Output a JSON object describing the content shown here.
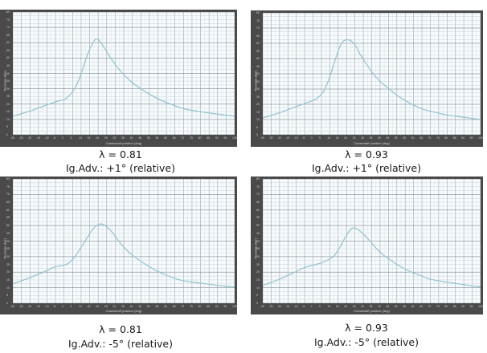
{
  "chart_data": [
    {
      "type": "line",
      "title": "",
      "caption_line1": "λ = 0.81",
      "caption_line2": "Ig.Adv.: +1° (relative)",
      "xlabel": "Crankshaft position (deg)",
      "ylabel": "Pressure (bar)",
      "xlim": [
        -30,
        100
      ],
      "ylim": [
        0,
        80
      ],
      "grid": true,
      "line_color": "#8fc3d0",
      "x": [
        -30,
        -20,
        -10,
        -5,
        0,
        2,
        5,
        8,
        11,
        14,
        17,
        19,
        21,
        24,
        28,
        32,
        36,
        40,
        45,
        50,
        55,
        60,
        65,
        70,
        80,
        90,
        100
      ],
      "values": [
        12,
        15.5,
        19.5,
        21.5,
        23,
        24.5,
        28,
        34,
        43,
        53,
        60,
        62.5,
        61,
        56,
        49,
        43,
        38,
        34,
        30,
        26.5,
        23.5,
        21,
        19,
        17,
        15,
        13.5,
        12
      ]
    },
    {
      "type": "line",
      "title": "",
      "caption_line1": "λ = 0.93",
      "caption_line2": "Ig.Adv.: +1° (relative)",
      "xlabel": "Crankshaft position (deg)",
      "ylabel": "Pressure (bar)",
      "xlim": [
        -30,
        100
      ],
      "ylim": [
        0,
        80
      ],
      "grid": true,
      "line_color": "#8fc3d0",
      "x": [
        -30,
        -20,
        -10,
        -5,
        0,
        3,
        6,
        9,
        12,
        15,
        17,
        19,
        22,
        25,
        28,
        32,
        36,
        40,
        45,
        50,
        55,
        60,
        65,
        70,
        80,
        90,
        100
      ],
      "values": [
        11,
        14.5,
        18.5,
        20.5,
        22.5,
        24.5,
        28,
        35,
        45,
        55,
        60,
        62,
        62,
        59,
        53,
        46,
        40,
        35,
        30.5,
        26,
        22.5,
        19.5,
        17,
        15.5,
        13,
        11.5,
        10
      ]
    },
    {
      "type": "line",
      "title": "",
      "caption_line1": "λ = 0.81",
      "caption_line2": "Ig.Adv.: -5° (relative)",
      "xlabel": "Crankshaft position (deg)",
      "ylabel": "Pressure (bar)",
      "xlim": [
        -30,
        100
      ],
      "ylim": [
        0,
        80
      ],
      "grid": true,
      "line_color": "#8fc3d0",
      "x": [
        -30,
        -20,
        -10,
        -5,
        0,
        3,
        6,
        10,
        14,
        17,
        20,
        22,
        24,
        28,
        32,
        36,
        40,
        45,
        50,
        55,
        60,
        65,
        70,
        80,
        90,
        100
      ],
      "values": [
        12.5,
        16.5,
        21,
        23.5,
        24.5,
        26,
        29.5,
        36,
        43,
        48,
        50.5,
        51,
        50,
        46,
        40,
        35,
        31,
        27,
        23.5,
        20.5,
        18,
        16,
        14.5,
        13,
        11.5,
        10.5
      ]
    },
    {
      "type": "line",
      "title": "",
      "caption_line1": "λ = 0.93",
      "caption_line2": "Ig.Adv.: -5° (relative)",
      "xlabel": "Crankshaft position (deg)",
      "ylabel": "Pressure (bar)",
      "xlim": [
        -30,
        100
      ],
      "ylim": [
        0,
        80
      ],
      "grid": true,
      "line_color": "#8fc3d0",
      "x": [
        -30,
        -20,
        -10,
        -5,
        0,
        5,
        10,
        13,
        16,
        19,
        22,
        24,
        26,
        30,
        34,
        38,
        42,
        46,
        50,
        55,
        60,
        65,
        70,
        80,
        90,
        100
      ],
      "values": [
        11.5,
        15.5,
        20.5,
        23,
        24.5,
        26,
        28.5,
        31,
        36,
        42,
        47,
        48.5,
        48,
        44.5,
        40,
        35,
        31,
        28,
        25,
        22,
        19.5,
        17.5,
        15.5,
        13.5,
        12,
        10.5
      ]
    }
  ],
  "axis_ticks": {
    "x": [
      "-30",
      "-25",
      "-20",
      "-15",
      "-10",
      "-5",
      "0",
      "5",
      "10",
      "15",
      "20",
      "25",
      "30",
      "35",
      "40",
      "45",
      "50",
      "55",
      "60",
      "65",
      "70",
      "75",
      "80",
      "85",
      "90",
      "95",
      "100"
    ],
    "y": [
      "0",
      "5",
      "10",
      "15",
      "20",
      "25",
      "30",
      "35",
      "40",
      "45",
      "50",
      "55",
      "60",
      "65",
      "70",
      "75",
      "80"
    ]
  }
}
